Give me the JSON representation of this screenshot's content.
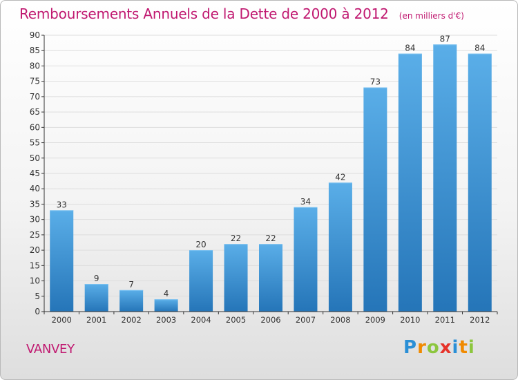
{
  "header": {
    "title": "Remboursements Annuels de la Dette de 2000 à 2012",
    "unit": "(en milliers d'€)"
  },
  "footer": {
    "commune": "VANVEY",
    "logo": "Proxiti"
  },
  "colors": {
    "title": "#c01870",
    "bar_top": "#5aaee8",
    "bar_bottom": "#2575b8",
    "axis": "#333333",
    "grid": "#dddddd"
  },
  "chart_data": {
    "type": "bar",
    "title": "Remboursements Annuels de la Dette de 2000 à 2012",
    "xlabel": "",
    "ylabel": "",
    "categories": [
      "2000",
      "2001",
      "2002",
      "2003",
      "2004",
      "2005",
      "2006",
      "2007",
      "2008",
      "2009",
      "2010",
      "2011",
      "2012"
    ],
    "values": [
      33,
      9,
      7,
      4,
      20,
      22,
      22,
      34,
      42,
      73,
      84,
      87,
      84
    ],
    "ylim": [
      0,
      90
    ],
    "yticks": [
      0,
      5,
      10,
      15,
      20,
      25,
      30,
      35,
      40,
      45,
      50,
      55,
      60,
      65,
      70,
      75,
      80,
      85,
      90
    ],
    "data_labels": true,
    "grid": true
  }
}
